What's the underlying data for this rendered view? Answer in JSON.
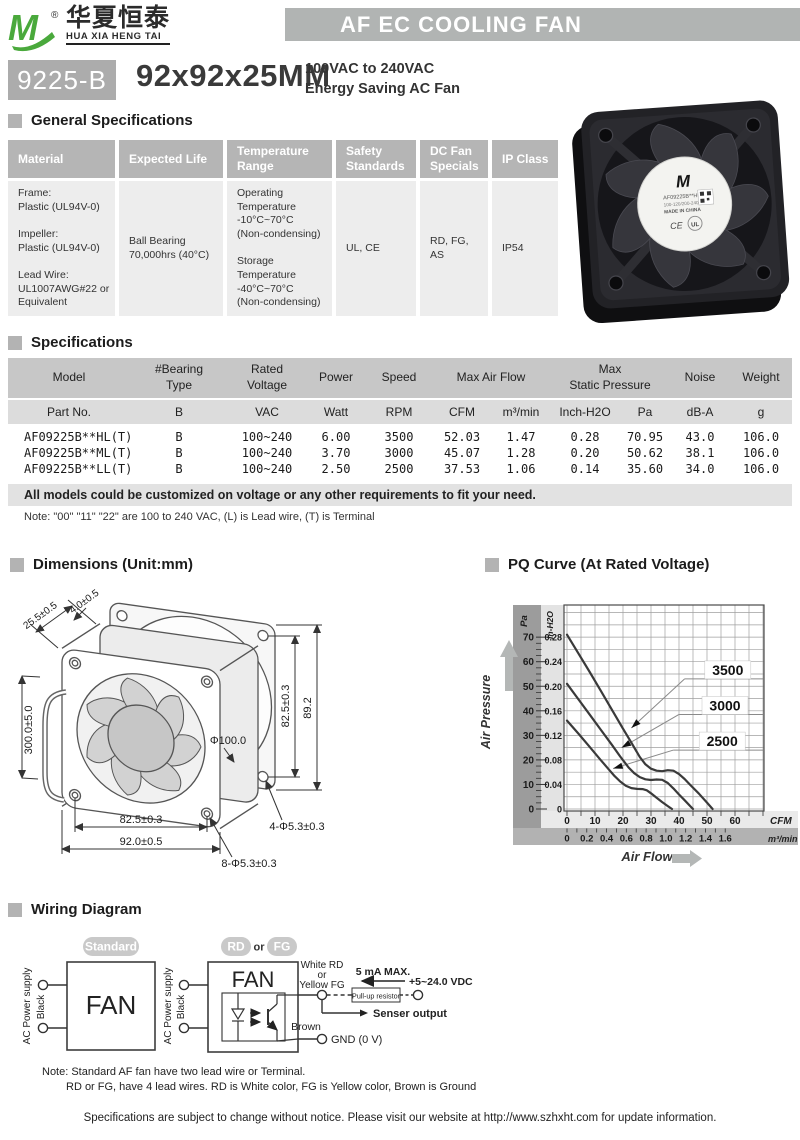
{
  "header": {
    "brand_cn": "华夏恒泰",
    "brand_en": "HUA XIA HENG TAI",
    "registered": "®",
    "title": "AF EC COOLING FAN"
  },
  "model": {
    "code": "9225-B",
    "size": "92x92x25MM",
    "volt": "100VAC to 240VAC\nEnergy Saving AC Fan"
  },
  "photo": {
    "logo": "M",
    "label_model": "AF09225B**HL",
    "label_volt": "100-120/200-240VAC",
    "made_in": "MADE IN CHINA",
    "ce": "CE",
    "ul": "UL"
  },
  "sections": {
    "general": "General Specifications",
    "specs": "Specifications",
    "dims": "Dimensions (Unit:mm)",
    "pq": "PQ Curve (At Rated Voltage)",
    "wiring": "Wiring Diagram"
  },
  "general_table": {
    "headers": [
      "Material",
      "Expected Life",
      "Temperature\nRange",
      "Safety\nStandards",
      "DC Fan\nSpecials",
      "IP Class"
    ],
    "material": [
      "Frame:",
      "Plastic (UL94V-0)",
      "",
      "Impeller:",
      "Plastic (UL94V-0)",
      "",
      "Lead Wire:",
      "UL1007AWG#22 or",
      "Equivalent"
    ],
    "life": [
      "Ball Bearing",
      "70,000hrs (40°C)"
    ],
    "temp": [
      "Operating",
      "Temperature",
      "-10°C~70°C",
      "(Non-condensing)",
      "",
      "Storage",
      "Temperature",
      "-40°C~70°C",
      "(Non-condensing)"
    ],
    "safety": "UL, CE",
    "dc": [
      "RD, FG,",
      "AS"
    ],
    "ip": "IP54"
  },
  "spec_table": {
    "h_model": "Model",
    "h_bearing": "#Bearing\nType",
    "h_voltage": "Rated\nVoltage",
    "h_power": "Power",
    "h_speed": "Speed",
    "h_airflow": "Max  Air  Flow",
    "h_pressure": "Max\nStatic  Pressure",
    "h_noise": "Noise",
    "h_weight": "Weight",
    "units": [
      "Part No.",
      "B",
      "VAC",
      "Watt",
      "RPM",
      "CFM",
      "m³/min",
      "Inch-H2O",
      "Pa",
      "dB-A",
      "g"
    ],
    "rows": [
      [
        "AF09225B**HL(T)",
        "B",
        "100~240",
        "6.00",
        "3500",
        "52.03",
        "1.47",
        "0.28",
        "70.95",
        "43.0",
        "106.0"
      ],
      [
        "AF09225B**ML(T)",
        "B",
        "100~240",
        "3.70",
        "3000",
        "45.07",
        "1.28",
        "0.20",
        "50.62",
        "38.1",
        "106.0"
      ],
      [
        "AF09225B**LL(T)",
        "B",
        "100~240",
        "2.50",
        "2500",
        "37.53",
        "1.06",
        "0.14",
        "35.60",
        "34.0",
        "106.0"
      ]
    ],
    "footnote1": "All models could be customized on voltage or any other requirements to fit your need.",
    "footnote2": "Note: \"00\" \"11\"  \"22\" are 100 to 240 VAC, (L) is Lead wire, (T) is Terminal"
  },
  "dims_labels": {
    "depth": "25.5±0.5",
    "gasket": "4.0±0.5",
    "lead": "300.0±5.0",
    "dia": "Φ100.0",
    "pitch_v": "82.5±0.3",
    "plate_h": "89.2",
    "pitch_h": "82.5±0.3",
    "width": "92.0±0.5",
    "holes8": "8-Φ5.3±0.3",
    "holes4": "4-Φ5.3±0.3"
  },
  "chart_data": {
    "type": "line",
    "title": "PQ Curve (At Rated Voltage)",
    "x_axis": {
      "label": "Air Flow",
      "primary_unit": "CFM",
      "secondary_unit": "m³/min",
      "cfm_ticks": [
        0,
        10,
        20,
        30,
        40,
        50,
        60
      ],
      "m3min_ticks": [
        "0",
        "0.2",
        "0.4",
        "0.6",
        "0.8",
        "1.0",
        "1.2",
        "1.4",
        "1.6"
      ],
      "cfm_range": [
        0,
        70.5
      ],
      "m3min_to_cfm": 35.315,
      "grid_step_cfm": 5
    },
    "y_axis": {
      "label": "Air Pressure",
      "primary_unit": "Pa",
      "secondary_unit": "In-H2O",
      "pa_ticks": [
        0,
        10,
        20,
        30,
        40,
        50,
        60,
        70
      ],
      "inh2o_ticks": [
        "0",
        "0.04",
        "0.08",
        "0.12",
        "0.16",
        "0.20",
        "0.24",
        "0.28"
      ],
      "pa_range": [
        0,
        83
      ],
      "grid_step_pa": 5
    },
    "series": [
      {
        "name": "3500",
        "points": [
          [
            0,
            71
          ],
          [
            4,
            63.5
          ],
          [
            8,
            56
          ],
          [
            12,
            48.3
          ],
          [
            16,
            40.5
          ],
          [
            20,
            32.7
          ],
          [
            23,
            27
          ],
          [
            26,
            21.2
          ],
          [
            28,
            18.2
          ],
          [
            30,
            16.4
          ],
          [
            32,
            15.6
          ],
          [
            34,
            15.4
          ],
          [
            36,
            15.8
          ],
          [
            38,
            15.6
          ],
          [
            40,
            14.2
          ],
          [
            42,
            12.2
          ],
          [
            44,
            9.8
          ],
          [
            47,
            6.4
          ],
          [
            50,
            2.6
          ],
          [
            52,
            0
          ]
        ]
      },
      {
        "name": "3000",
        "points": [
          [
            0,
            51
          ],
          [
            4,
            44.8
          ],
          [
            8,
            38.6
          ],
          [
            12,
            32.4
          ],
          [
            16,
            26.2
          ],
          [
            19,
            21.4
          ],
          [
            22,
            16.9
          ],
          [
            24,
            14.6
          ],
          [
            26,
            13
          ],
          [
            28,
            12.1
          ],
          [
            30,
            11.8
          ],
          [
            32,
            12
          ],
          [
            34,
            11.9
          ],
          [
            36,
            10.6
          ],
          [
            38,
            8.4
          ],
          [
            40,
            5.9
          ],
          [
            42,
            3.6
          ],
          [
            44,
            1.2
          ],
          [
            45,
            0
          ]
        ]
      },
      {
        "name": "2500",
        "points": [
          [
            0,
            36
          ],
          [
            4,
            30.8
          ],
          [
            8,
            25.4
          ],
          [
            12,
            20
          ],
          [
            15,
            16
          ],
          [
            17,
            13.4
          ],
          [
            19,
            11.2
          ],
          [
            21,
            9.5
          ],
          [
            23,
            8.5
          ],
          [
            25,
            8.2
          ],
          [
            27,
            8.1
          ],
          [
            28.5,
            7.6
          ],
          [
            30,
            6.4
          ],
          [
            32,
            4.6
          ],
          [
            34,
            2.8
          ],
          [
            36,
            1.2
          ],
          [
            37.5,
            0
          ]
        ]
      }
    ],
    "legend": [
      {
        "label": "3500",
        "line_start_cfm": 42,
        "line_pa": 53,
        "arrow_cfm": 23,
        "arrow_pa": 33
      },
      {
        "label": "3000",
        "line_start_cfm": 40,
        "line_pa": 38.5,
        "arrow_cfm": 19.5,
        "arrow_pa": 25
      },
      {
        "label": "2500",
        "line_start_cfm": 38,
        "line_pa": 24,
        "arrow_cfm": 16.5,
        "arrow_pa": 16.5
      }
    ]
  },
  "wiring": {
    "badge_standard": "Standard",
    "badge_rd": "RD",
    "badge_or": "or",
    "badge_fg": "FG",
    "fan": "FAN",
    "ac": "AC Power supply",
    "black": "Black",
    "white_rd": [
      "White  RD",
      "or",
      "Yellow FG"
    ],
    "ma": "5 mA MAX.",
    "vdc": "+5~24.0 VDC",
    "pullup": "Pull-up resistor",
    "senser": "Senser output",
    "brown": "Brown",
    "gnd": "GND (0 V)",
    "note1": "Note: Standard AF fan have two lead wire or Terminal.",
    "note2": "RD or FG, have 4 lead wires. RD is White color, FG is Yellow color, Brown is Ground"
  },
  "footer": {
    "text": "Specifications are subject to change without notice. Please visit our website at http://www.szhxht.com for update information."
  }
}
